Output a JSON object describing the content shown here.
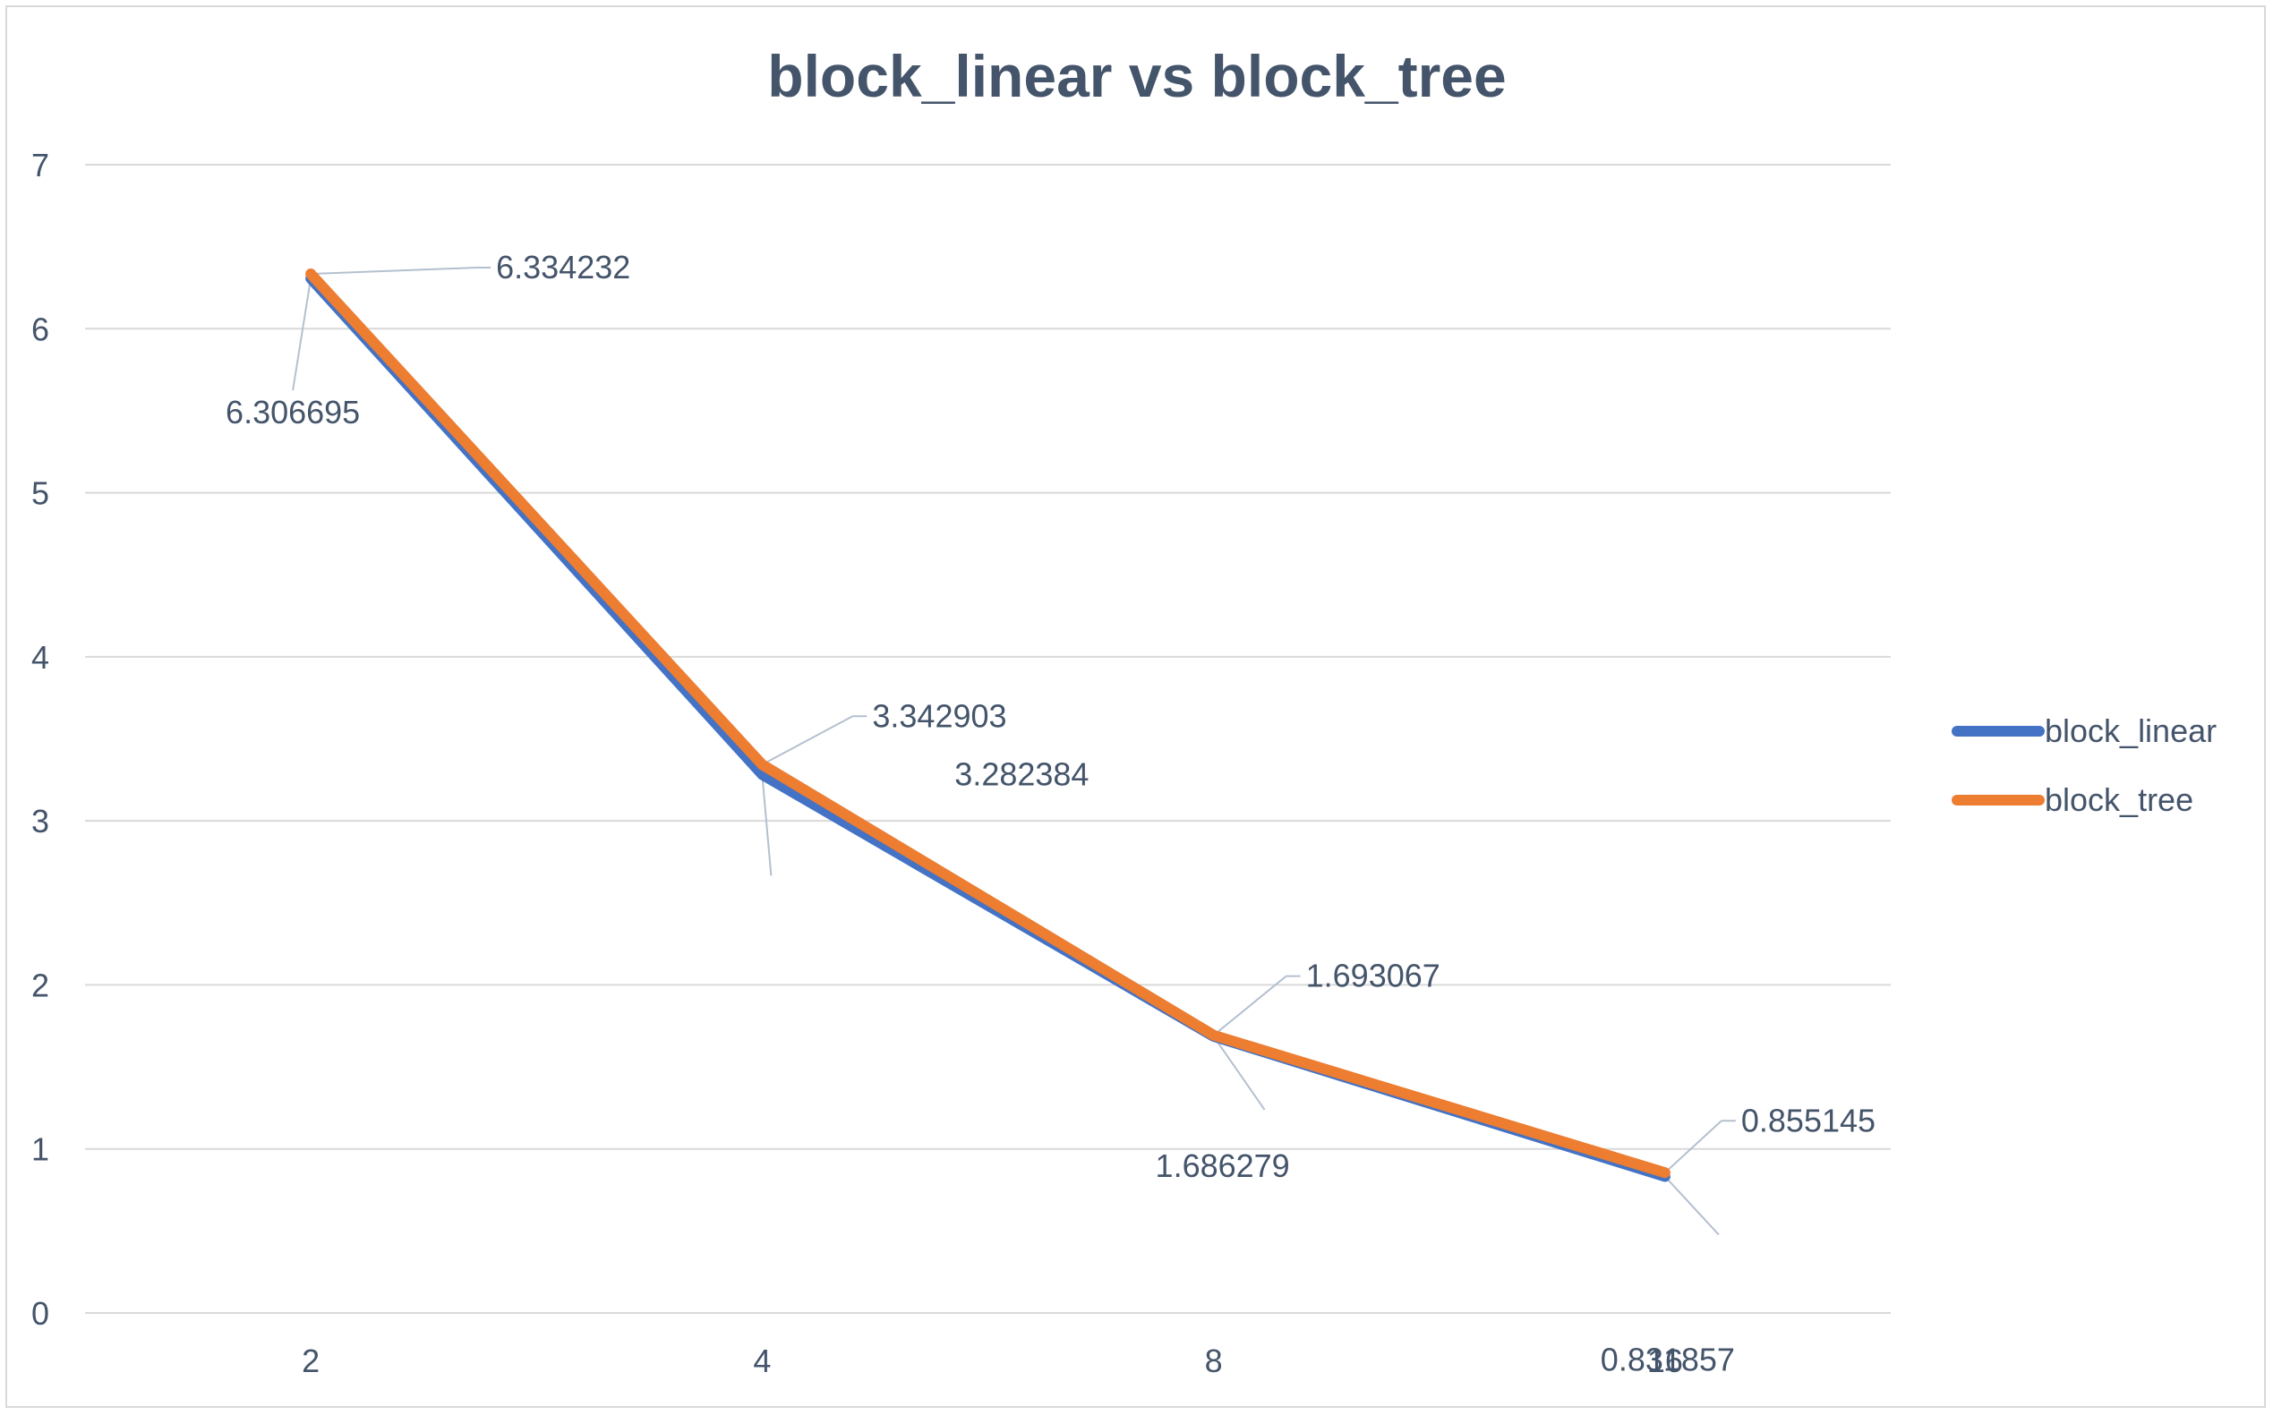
{
  "chart_data": {
    "type": "line",
    "title": "block_linear vs block_tree",
    "xlabel": "",
    "ylabel": "",
    "categories": [
      "2",
      "4",
      "8",
      "16"
    ],
    "ylim": [
      0,
      7
    ],
    "yticks": [
      "0",
      "1",
      "2",
      "3",
      "4",
      "5",
      "6",
      "7"
    ],
    "grid": true,
    "legend": "right",
    "series": [
      {
        "name": "block_linear",
        "color": "#4472c4",
        "values": [
          6.306695,
          3.282384,
          1.686279,
          0.831857
        ],
        "labels": [
          "6.306695",
          "3.282384",
          "1.686279",
          "0.831857"
        ]
      },
      {
        "name": "block_tree",
        "color": "#ed7d31",
        "values": [
          6.334232,
          3.342903,
          1.693067,
          0.855145
        ],
        "labels": [
          "6.334232",
          "3.342903",
          "1.693067",
          "0.855145"
        ]
      }
    ]
  }
}
